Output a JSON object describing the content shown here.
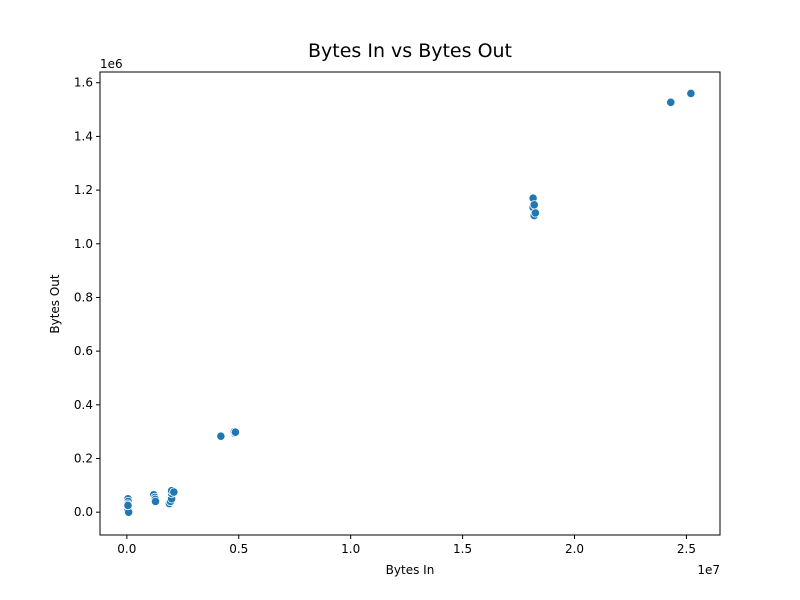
{
  "chart_data": {
    "type": "scatter",
    "title": "Bytes In vs Bytes Out",
    "xlabel": "Bytes In",
    "ylabel": "Bytes Out",
    "x_offset_label": "1e7",
    "y_offset_label": "1e6",
    "xlim": [
      -0.12,
      2.65
    ],
    "ylim": [
      -0.085,
      1.64
    ],
    "x_ticks": [
      0.0,
      0.5,
      1.0,
      1.5,
      2.0,
      2.5
    ],
    "x_tick_labels": [
      "0.0",
      "0.5",
      "1.0",
      "1.5",
      "2.0",
      "2.5"
    ],
    "y_ticks": [
      0.0,
      0.2,
      0.4,
      0.6,
      0.8,
      1.0,
      1.2,
      1.4,
      1.6
    ],
    "y_tick_labels": [
      "0.0",
      "0.2",
      "0.4",
      "0.6",
      "0.8",
      "1.0",
      "1.2",
      "1.4",
      "1.6"
    ],
    "grid": false,
    "marker_color": "#1f77b4",
    "series": [
      {
        "x": [
          0.005,
          0.006,
          0.004,
          0.007,
          0.005,
          0.006,
          0.004,
          0.008,
          0.005,
          0.12,
          0.125,
          0.127,
          0.128,
          0.19,
          0.195,
          0.2,
          0.2,
          0.2,
          0.21,
          0.42,
          0.48,
          0.48,
          0.485,
          1.815,
          1.82,
          1.82,
          1.825,
          1.82,
          1.82,
          1.815,
          1.825,
          1.82,
          2.43,
          2.52
        ],
        "y": [
          0.05,
          0.04,
          0.03,
          0.02,
          0.015,
          0.01,
          0.005,
          0.0,
          0.025,
          0.065,
          0.055,
          0.048,
          0.04,
          0.032,
          0.04,
          0.05,
          0.07,
          0.08,
          0.075,
          0.283,
          0.295,
          0.3,
          0.298,
          1.17,
          1.14,
          1.13,
          1.12,
          1.11,
          1.105,
          1.135,
          1.115,
          1.145,
          1.527,
          1.56
        ]
      }
    ]
  }
}
